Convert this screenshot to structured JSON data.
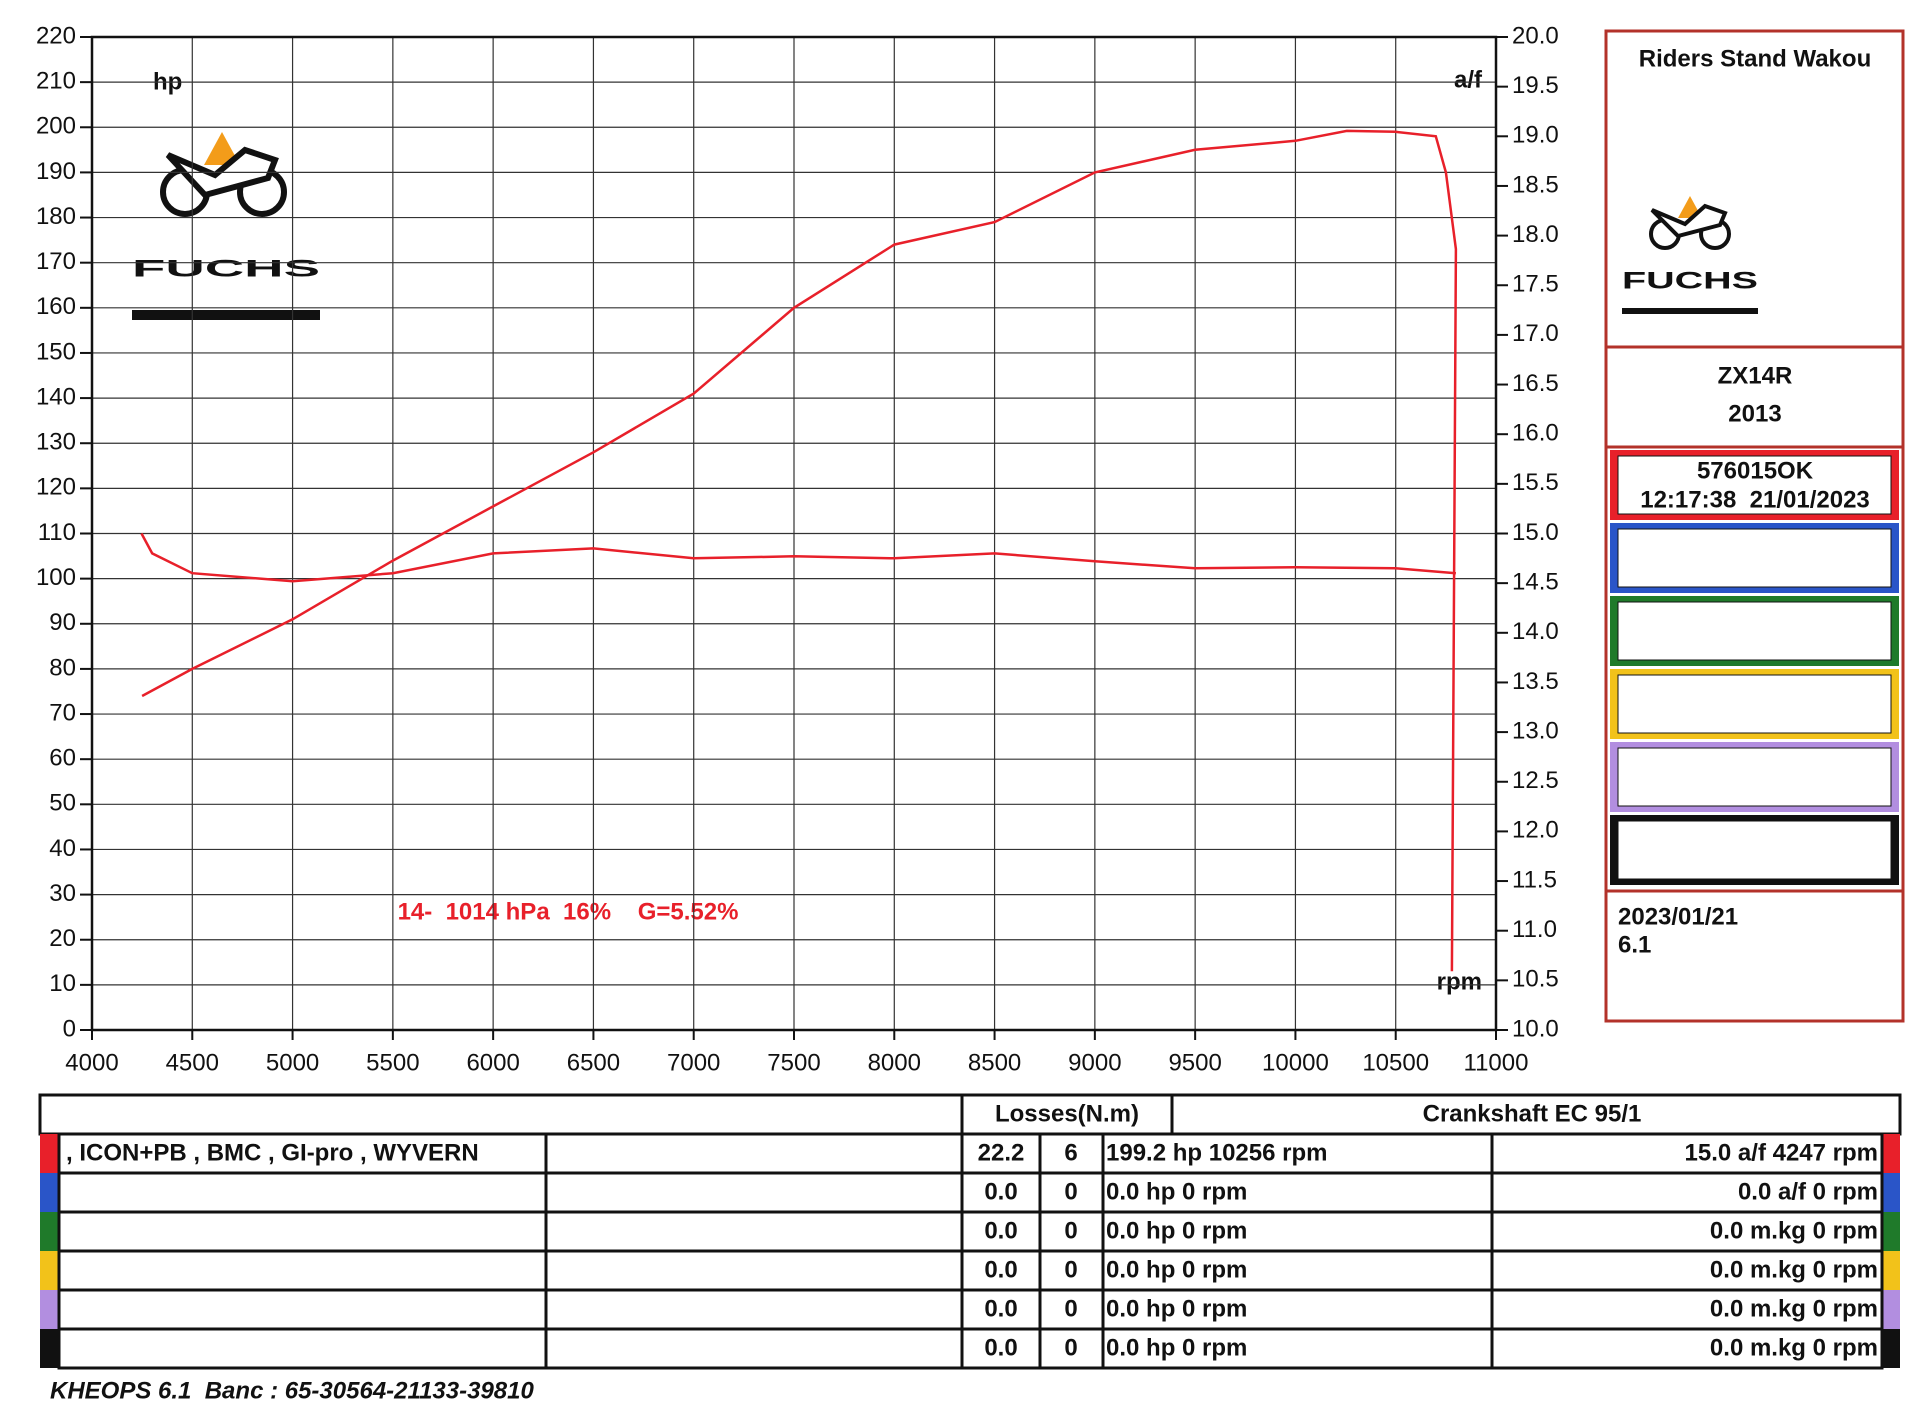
{
  "chart_data": {
    "type": "line",
    "x_label": "rpm",
    "y_label": "hp",
    "y2_label": "a/f",
    "annotation": "14-  1014 hPa  16%    G=5.52%",
    "xlim": [
      4000,
      11000
    ],
    "xticks": [
      4000,
      4500,
      5000,
      5500,
      6000,
      6500,
      7000,
      7500,
      8000,
      8500,
      9000,
      9500,
      10000,
      10500,
      11000
    ],
    "ylim": [
      0,
      220
    ],
    "yticks": [
      0,
      10,
      20,
      30,
      40,
      50,
      60,
      70,
      80,
      90,
      100,
      110,
      120,
      130,
      140,
      150,
      160,
      170,
      180,
      190,
      200,
      210,
      220
    ],
    "y2lim": [
      10,
      20
    ],
    "y2ticks": [
      {
        "value": 10,
        "label": "10.0"
      },
      10.5,
      {
        "value": 11,
        "label": "11.0"
      },
      11.5,
      {
        "value": 12,
        "label": "12.0"
      },
      12.5,
      {
        "value": 13,
        "label": "13.0"
      },
      13.5,
      {
        "value": 14,
        "label": "14.0"
      },
      14.5,
      {
        "value": 15,
        "label": "15.0"
      },
      15.5,
      {
        "value": 16,
        "label": "16.0"
      },
      16.5,
      {
        "value": 17,
        "label": "17.0"
      },
      17.5,
      {
        "value": 18,
        "label": "18.0"
      },
      18.5,
      {
        "value": 19,
        "label": "19.0"
      },
      19.5,
      {
        "value": 20,
        "label": "20.0"
      }
    ],
    "grid": true,
    "series": [
      {
        "color": "#e8202a",
        "x": [
          4250,
          4500,
          5000,
          5500,
          6000,
          6500,
          7000,
          7500,
          8000,
          8500,
          9000,
          9500,
          10000,
          10256,
          10500,
          10700,
          10750,
          10800,
          10780
        ],
        "values": [
          74,
          80,
          91,
          104,
          116,
          128,
          141,
          160,
          174,
          179,
          190,
          195,
          197,
          199.2,
          199,
          198,
          190,
          173,
          13
        ]
      },
      {
        "color": "#e8202a",
        "axis": "y2",
        "x": [
          4247,
          4300,
          4500,
          5000,
          5500,
          6000,
          6500,
          7000,
          7500,
          8000,
          8500,
          9000,
          9500,
          10000,
          10500,
          10800
        ],
        "values": [
          15.0,
          14.8,
          14.6,
          14.52,
          14.6,
          14.8,
          14.85,
          14.75,
          14.77,
          14.75,
          14.8,
          14.72,
          14.65,
          14.66,
          14.65,
          14.6
        ]
      }
    ]
  },
  "logo": "FUCHS",
  "panel": {
    "shop": "Riders Stand Wakou",
    "model": "ZX14R",
    "year": "2013",
    "run": "576015OK",
    "timestamp": "12:17:38  21/01/2023",
    "date": "2023/01/21",
    "version": "6.1"
  },
  "table": {
    "losses_header": "Losses(N.m)",
    "crank_header": "Crankshaft EC 95/1",
    "rows": [
      {
        "color": "#e8202a",
        "name": ", ICON+PB , BMC , GI-pro , WYVERN",
        "loss": "22.2",
        "n": "6",
        "hp": "199.2 hp 10256 rpm",
        "af": "15.0 a/f 4247 rpm"
      },
      {
        "color": "#2a55c8",
        "name": "",
        "loss": "0.0",
        "n": "0",
        "hp": "0.0 hp 0 rpm",
        "af": "0.0 a/f 0 rpm"
      },
      {
        "color": "#1f7a2a",
        "name": "",
        "loss": "0.0",
        "n": "0",
        "hp": "0.0 hp 0 rpm",
        "af": "0.0 m.kg 0 rpm"
      },
      {
        "color": "#f2c21a",
        "name": "",
        "loss": "0.0",
        "n": "0",
        "hp": "0.0 hp 0 rpm",
        "af": "0.0 m.kg 0 rpm"
      },
      {
        "color": "#b28ee0",
        "name": "",
        "loss": "0.0",
        "n": "0",
        "hp": "0.0 hp 0 rpm",
        "af": "0.0 m.kg 0 rpm"
      },
      {
        "color": "#111111",
        "name": "",
        "loss": "0.0",
        "n": "0",
        "hp": "0.0 hp 0 rpm",
        "af": "0.0 m.kg 0 rpm"
      }
    ]
  },
  "footer": "KHEOPS 6.1  Banc : 65-30564-21133-39810"
}
